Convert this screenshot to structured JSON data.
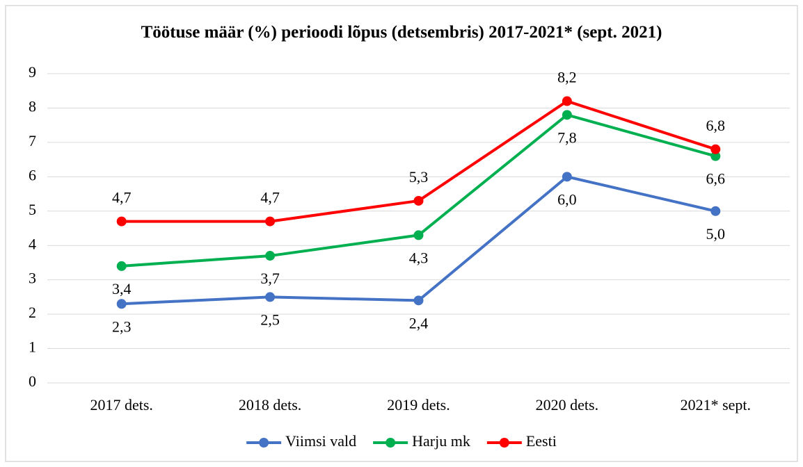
{
  "chart_data": {
    "type": "line",
    "title": "Töötuse määr (%) perioodi lõpus (detsembris) 2017-2021* (sept. 2021)",
    "categories": [
      "2017 dets.",
      "2018 dets.",
      "2019 dets.",
      "2020 dets.",
      "2021* sept."
    ],
    "series": [
      {
        "name": "Viimsi vald",
        "color": "#4472c4",
        "values": [
          2.3,
          2.5,
          2.4,
          6.0,
          5.0
        ],
        "value_labels": [
          "2,3",
          "2,5",
          "2,4",
          "6,0",
          "5,0"
        ]
      },
      {
        "name": "Harju mk",
        "color": "#00b050",
        "values": [
          3.4,
          3.7,
          4.3,
          7.8,
          6.6
        ],
        "value_labels": [
          "3,4",
          "3,7",
          "4,3",
          "7,8",
          "6,6"
        ]
      },
      {
        "name": "Eesti",
        "color": "#ff0000",
        "values": [
          4.7,
          4.7,
          5.3,
          8.2,
          6.8
        ],
        "value_labels": [
          "4,7",
          "4,7",
          "5,3",
          "8,2",
          "6,8"
        ]
      }
    ],
    "ylim": [
      0,
      9
    ],
    "yticks": [
      0,
      1,
      2,
      3,
      4,
      5,
      6,
      7,
      8,
      9
    ],
    "grid": true,
    "legend": "bottom"
  }
}
